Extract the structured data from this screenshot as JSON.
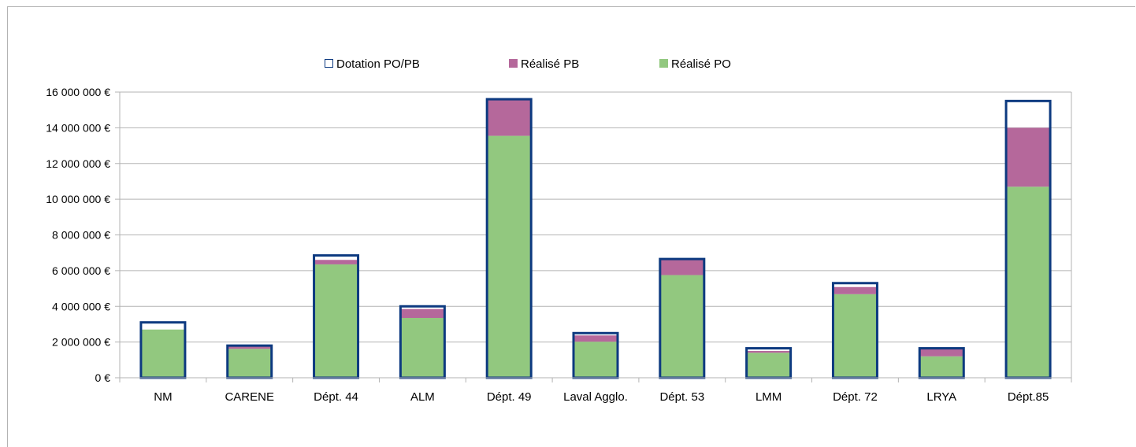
{
  "chart_data": {
    "type": "bar",
    "title": "",
    "xlabel": "",
    "ylabel": "",
    "ylim": [
      0,
      16000000
    ],
    "yticks": [
      0,
      2000000,
      4000000,
      6000000,
      8000000,
      10000000,
      12000000,
      14000000,
      16000000
    ],
    "ytick_labels": [
      "0 €",
      "2 000 000 €",
      "4 000 000 €",
      "6 000 000 €",
      "8 000 000 €",
      "10 000 000 €",
      "12 000 000 €",
      "14 000 000 €",
      "16 000 000 €"
    ],
    "grid": true,
    "legend_position": "top-center",
    "categories": [
      "NM",
      "CARENE",
      "Dépt. 44",
      "ALM",
      "Dépt. 49",
      "Laval Agglo.",
      "Dépt. 53",
      "LMM",
      "Dépt. 72",
      "LRYA",
      "Dépt.85"
    ],
    "series": [
      {
        "name": "Dotation PO/PB",
        "style": "outline",
        "color": "#0d3a80",
        "values": [
          3100000,
          1800000,
          6850000,
          4000000,
          15600000,
          2500000,
          6650000,
          1650000,
          5300000,
          1650000,
          15500000
        ]
      },
      {
        "name": "Réalisé PB",
        "style": "stacked",
        "color": "#b5689b",
        "values": [
          0,
          150000,
          250000,
          500000,
          2050000,
          350000,
          900000,
          100000,
          400000,
          450000,
          3300000
        ]
      },
      {
        "name": "Réalisé PO",
        "style": "stacked",
        "color": "#92c87f",
        "values": [
          2700000,
          1620000,
          6350000,
          3350000,
          13550000,
          2020000,
          5750000,
          1400000,
          4680000,
          1200000,
          10700000
        ]
      }
    ]
  }
}
